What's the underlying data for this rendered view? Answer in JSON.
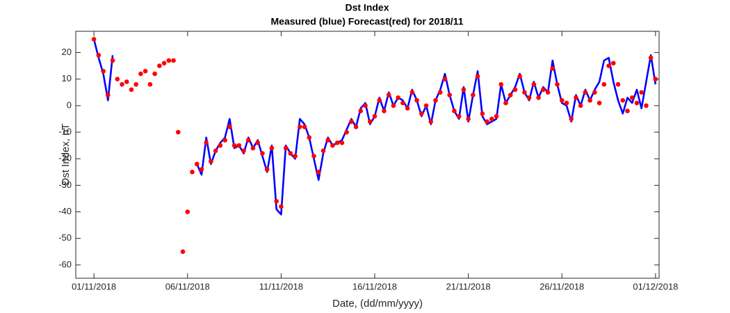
{
  "chart_data": {
    "type": "line",
    "title": "Dst Index",
    "subtitle": "Measured (blue) Forecast(red) for 2018/11",
    "xlabel": "Date, (dd/mm/yyyy)",
    "ylabel": "Dst Index, nT",
    "xlim": [
      -0.97,
      30.19
    ],
    "xticks": [
      {
        "value": 0,
        "label": "01/11/2018"
      },
      {
        "value": 5,
        "label": "06/11/2018"
      },
      {
        "value": 10,
        "label": "11/11/2018"
      },
      {
        "value": 15,
        "label": "16/11/2018"
      },
      {
        "value": 20,
        "label": "21/11/2018"
      },
      {
        "value": 25,
        "label": "26/11/2018"
      },
      {
        "value": 30,
        "label": "01/12/2018"
      }
    ],
    "ylim": [
      -65,
      28
    ],
    "yticks": [
      -60,
      -50,
      -40,
      -30,
      -20,
      -10,
      0,
      10,
      20
    ],
    "x": [
      0,
      0.25,
      0.5,
      0.75,
      1,
      1.25,
      1.5,
      1.75,
      2,
      2.25,
      2.5,
      2.75,
      3,
      3.25,
      3.5,
      3.75,
      4,
      4.25,
      4.5,
      4.75,
      5,
      5.25,
      5.5,
      5.75,
      6,
      6.25,
      6.5,
      6.75,
      7,
      7.25,
      7.5,
      7.75,
      8,
      8.25,
      8.5,
      8.75,
      9,
      9.25,
      9.5,
      9.75,
      10,
      10.25,
      10.5,
      10.75,
      11,
      11.25,
      11.5,
      11.75,
      12,
      12.25,
      12.5,
      12.75,
      13,
      13.25,
      13.5,
      13.75,
      14,
      14.25,
      14.5,
      14.75,
      15,
      15.25,
      15.5,
      15.75,
      16,
      16.25,
      16.5,
      16.75,
      17,
      17.25,
      17.5,
      17.75,
      18,
      18.25,
      18.5,
      18.75,
      19,
      19.25,
      19.5,
      19.75,
      20,
      20.25,
      20.5,
      20.75,
      21,
      21.25,
      21.5,
      21.75,
      22,
      22.25,
      22.5,
      22.75,
      23,
      23.25,
      23.5,
      23.75,
      24,
      24.25,
      24.5,
      24.75,
      25,
      25.25,
      25.5,
      25.75,
      26,
      26.25,
      26.5,
      26.75,
      27,
      27.25,
      27.5,
      27.75,
      28,
      28.25,
      28.5,
      28.75,
      29,
      29.25,
      29.5,
      29.75,
      30
    ],
    "series": [
      {
        "name": "Measured",
        "color": "#0000ff",
        "mode": "line",
        "values": [
          25,
          18,
          12,
          2,
          19,
          null,
          null,
          null,
          null,
          null,
          null,
          null,
          null,
          null,
          null,
          null,
          null,
          null,
          null,
          null,
          null,
          null,
          -22,
          -26,
          -12,
          -22,
          -17,
          -14,
          -12,
          -5,
          -16,
          -15,
          -18,
          -12,
          -16,
          -13,
          -19,
          -25,
          -15,
          -39,
          -41,
          -15,
          -18,
          -20,
          -5,
          -7,
          -12,
          -20,
          -28,
          -18,
          -12,
          -15,
          -14,
          -13,
          -9,
          -5,
          -8,
          -1,
          1,
          -7,
          -4,
          3,
          -2,
          5,
          0,
          3,
          2,
          -1,
          6,
          2,
          -4,
          0,
          -7,
          2,
          6,
          12,
          4,
          -2,
          -5,
          7,
          -6,
          4,
          13,
          -4,
          -7,
          -6,
          -5,
          8,
          1,
          4,
          7,
          12,
          5,
          2,
          9,
          3,
          7,
          5,
          17,
          8,
          1,
          0,
          -6,
          4,
          0,
          6,
          2,
          6,
          9,
          17,
          18,
          9,
          2,
          -3,
          3,
          1,
          6,
          -1,
          9,
          19,
          8
        ]
      },
      {
        "name": "Forecast",
        "color": "#ff0000",
        "mode": "markers",
        "values": [
          25,
          19,
          13,
          4,
          17,
          10,
          8,
          9,
          6,
          8,
          12,
          13,
          8,
          12,
          15,
          16,
          17,
          17,
          -10,
          -55,
          -40,
          -25,
          -22,
          -24,
          -14,
          -21,
          -17,
          -15,
          -13,
          -8,
          -15,
          -15,
          -17,
          -13,
          -16,
          -14,
          -18,
          -24,
          -16,
          -36,
          -38,
          -16,
          -18,
          -19,
          -8,
          -8,
          -12,
          -19,
          -25,
          -17,
          -13,
          -15,
          -14,
          -14,
          -10,
          -6,
          -8,
          -2,
          0,
          -6,
          -4,
          2,
          -2,
          4,
          0,
          3,
          1,
          -1,
          5,
          2,
          -3,
          0,
          -6,
          2,
          5,
          10,
          4,
          -2,
          -4,
          6,
          -5,
          4,
          11,
          -3,
          -6,
          -5,
          -4,
          8,
          1,
          4,
          6,
          11,
          5,
          3,
          8,
          3,
          6,
          5,
          14,
          8,
          2,
          1,
          -5,
          3,
          0,
          5,
          2,
          5,
          1,
          8,
          15,
          16,
          8,
          2,
          -2,
          3,
          1,
          5,
          0,
          18,
          10
        ]
      }
    ]
  }
}
